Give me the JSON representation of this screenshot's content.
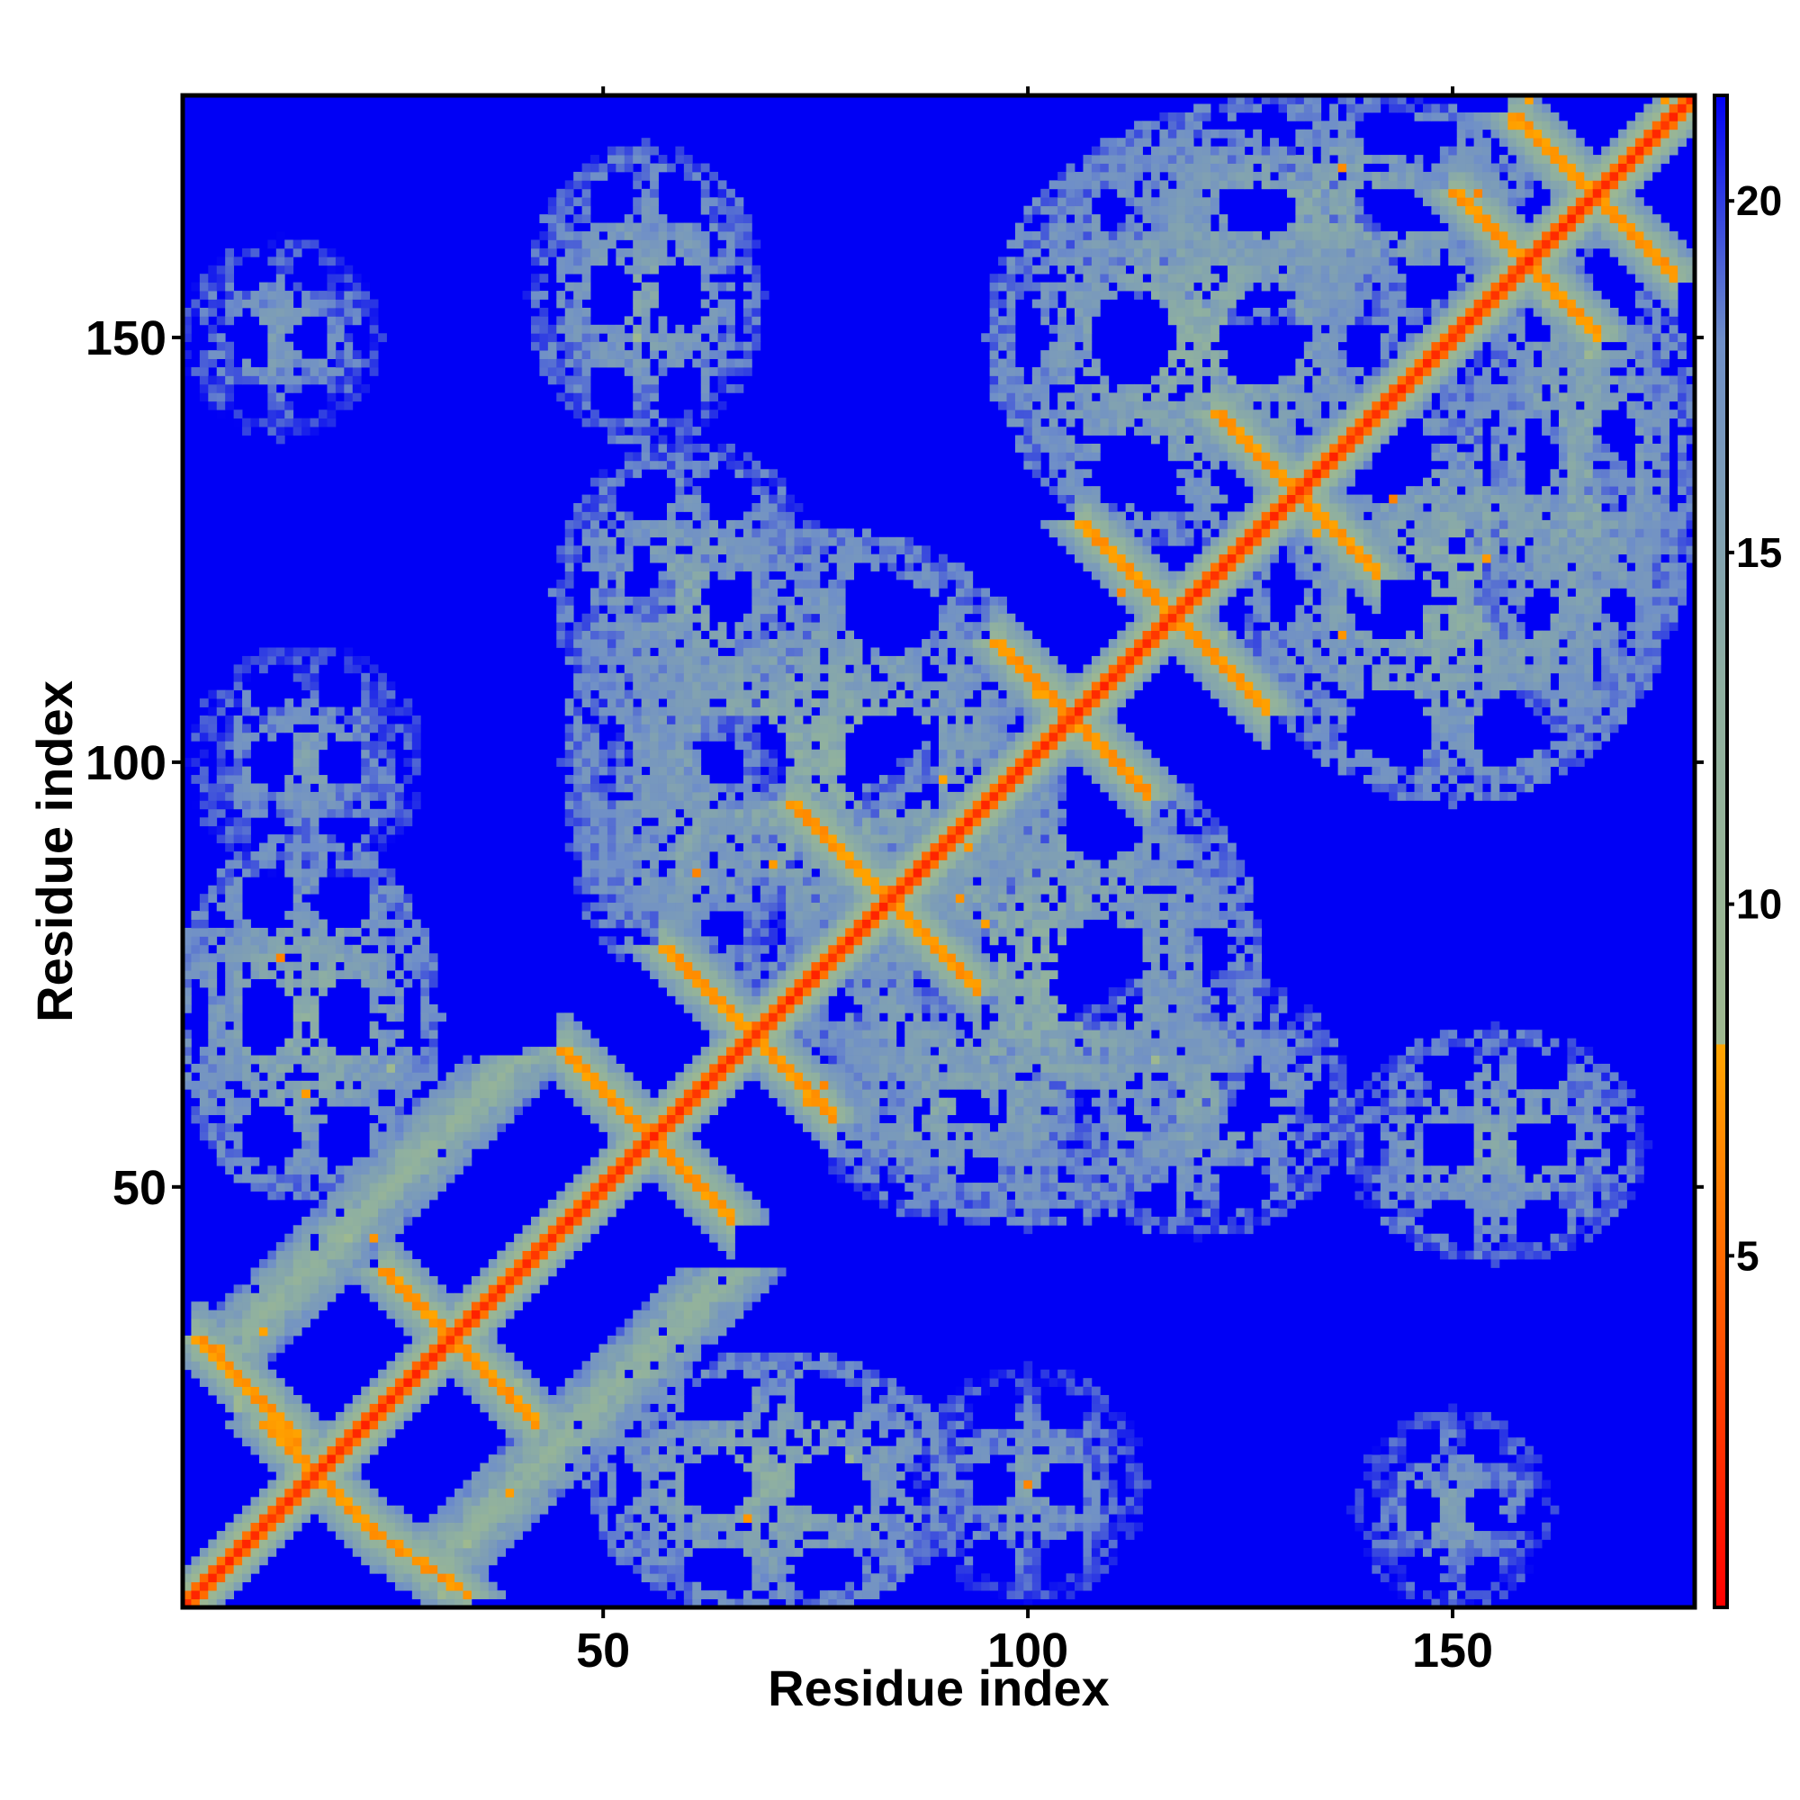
{
  "chart_data": {
    "type": "heatmap",
    "title": "",
    "xlabel": "Residue index",
    "ylabel": "Residue index",
    "n_residues": 178,
    "xlim": [
      0.5,
      178.5
    ],
    "ylim": [
      0.5,
      178.5
    ],
    "x_ticks": [
      50,
      100,
      150
    ],
    "y_ticks": [
      50,
      100,
      150
    ],
    "colorbar": {
      "range": [
        0,
        21.5
      ],
      "ticks": [
        5,
        10,
        15,
        20
      ],
      "stops": [
        {
          "value": 0,
          "color": "#ff0000"
        },
        {
          "value": 5,
          "color": "#ff6a00"
        },
        {
          "value": 8,
          "color": "#ffa500"
        },
        {
          "value": 8.01,
          "color": "#9fb98f"
        },
        {
          "value": 13,
          "color": "#8fb0a0"
        },
        {
          "value": 18,
          "color": "#6f8fc8"
        },
        {
          "value": 21.5,
          "color": "#0000f5"
        }
      ],
      "background_color": "#0000f5"
    },
    "diagonal": {
      "value": 1.5
    },
    "contact_features": [
      {
        "type": "band",
        "x1": 5,
        "y1": 30,
        "x2": 40,
        "y2": 65,
        "value": 11
      },
      {
        "type": "band",
        "x1": 30,
        "y1": 5,
        "x2": 65,
        "y2": 40,
        "value": 11
      },
      {
        "type": "anti",
        "x1": 24,
        "y1": 40,
        "x2": 42,
        "y2": 22,
        "value": 6.5
      },
      {
        "type": "anti",
        "x1": 2,
        "y1": 32,
        "x2": 14,
        "y2": 20,
        "value": 6.5
      },
      {
        "type": "anti",
        "x1": 22,
        "y1": 10,
        "x2": 34,
        "y2": 2,
        "value": 6.5
      },
      {
        "type": "anti",
        "x1": 10,
        "y1": 22,
        "x2": 22,
        "y2": 10,
        "value": 6.5
      },
      {
        "type": "anti",
        "x1": 45,
        "y1": 66,
        "x2": 65,
        "y2": 46,
        "value": 6.5
      },
      {
        "type": "anti",
        "x1": 57,
        "y1": 78,
        "x2": 77,
        "y2": 58,
        "value": 6.5
      },
      {
        "type": "anti",
        "x1": 72,
        "y1": 95,
        "x2": 94,
        "y2": 73,
        "value": 6.5
      },
      {
        "type": "anti",
        "x1": 96,
        "y1": 114,
        "x2": 114,
        "y2": 96,
        "value": 6.5
      },
      {
        "type": "anti",
        "x1": 106,
        "y1": 128,
        "x2": 128,
        "y2": 106,
        "value": 6.5
      },
      {
        "type": "anti",
        "x1": 122,
        "y1": 141,
        "x2": 141,
        "y2": 122,
        "value": 6.5
      },
      {
        "type": "anti",
        "x1": 150,
        "y1": 167,
        "x2": 167,
        "y2": 150,
        "value": 6.5
      },
      {
        "type": "anti",
        "x1": 157,
        "y1": 176,
        "x2": 176,
        "y2": 157,
        "value": 6.5
      },
      {
        "type": "blob",
        "x": 75,
        "y": 100,
        "rx": 30,
        "ry": 28,
        "value": 12
      },
      {
        "type": "blob",
        "x": 100,
        "y": 75,
        "rx": 28,
        "ry": 30,
        "value": 12
      },
      {
        "type": "blob",
        "x": 120,
        "y": 150,
        "rx": 25,
        "ry": 25,
        "value": 12
      },
      {
        "type": "blob",
        "x": 150,
        "y": 120,
        "rx": 25,
        "ry": 25,
        "value": 12
      },
      {
        "type": "blob",
        "x": 135,
        "y": 165,
        "rx": 32,
        "ry": 14,
        "value": 12.5
      },
      {
        "type": "blob",
        "x": 165,
        "y": 135,
        "rx": 14,
        "ry": 32,
        "value": 12.5
      },
      {
        "type": "blob",
        "x": 55,
        "y": 155,
        "rx": 14,
        "ry": 18,
        "value": 13
      },
      {
        "type": "blob",
        "x": 155,
        "y": 55,
        "rx": 18,
        "ry": 14,
        "value": 13
      },
      {
        "type": "blob",
        "x": 12,
        "y": 150,
        "rx": 12,
        "ry": 12,
        "value": 14
      },
      {
        "type": "blob",
        "x": 150,
        "y": 12,
        "rx": 12,
        "ry": 12,
        "value": 14
      },
      {
        "type": "blob",
        "x": 15,
        "y": 100,
        "rx": 14,
        "ry": 14,
        "value": 14
      },
      {
        "type": "blob",
        "x": 100,
        "y": 15,
        "rx": 14,
        "ry": 14,
        "value": 14
      },
      {
        "type": "blob",
        "x": 15,
        "y": 70,
        "rx": 16,
        "ry": 22,
        "value": 12
      },
      {
        "type": "blob",
        "x": 70,
        "y": 15,
        "rx": 22,
        "ry": 16,
        "value": 12
      },
      {
        "type": "blob",
        "x": 60,
        "y": 120,
        "rx": 16,
        "ry": 18,
        "value": 13
      },
      {
        "type": "blob",
        "x": 120,
        "y": 60,
        "rx": 18,
        "ry": 16,
        "value": 13
      },
      {
        "type": "blob",
        "x": 90,
        "y": 60,
        "rx": 16,
        "ry": 14,
        "value": 13
      },
      {
        "type": "blob",
        "x": 60,
        "y": 90,
        "rx": 14,
        "ry": 16,
        "value": 13
      }
    ]
  }
}
